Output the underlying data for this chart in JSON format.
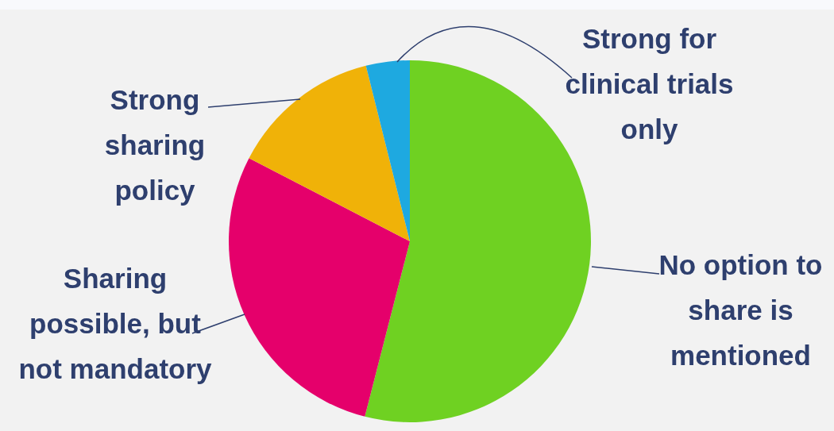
{
  "chart_data": {
    "type": "pie",
    "categories": [
      "No option to share is mentioned",
      "Sharing possible, but not mandatory",
      "Strong sharing policy",
      "Strong for clinical trials only"
    ],
    "values": [
      54,
      28.6,
      13.5,
      3.9
    ],
    "colors": [
      "#6fd122",
      "#e5006b",
      "#f0b208",
      "#1ea9e0"
    ],
    "legend": false
  }
}
